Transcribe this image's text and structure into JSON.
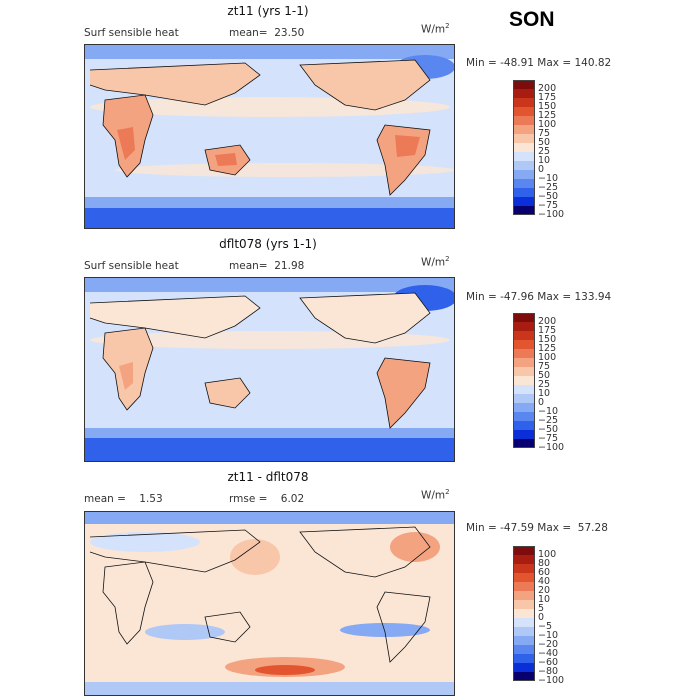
{
  "season": "SON",
  "colors": {
    "scale": [
      "#08006e",
      "#0a2fd8",
      "#2f61ea",
      "#5a86f0",
      "#86a9f3",
      "#b0c8f5",
      "#d4e3fb",
      "#fbe6d6",
      "#f8c6a9",
      "#f4a380",
      "#ec7a57",
      "#e3552e",
      "#c9361c",
      "#a91c12",
      "#7f0c0c"
    ]
  },
  "panels": [
    {
      "title": "zt11 (yrs 1-1)",
      "left_label": "Surf sensible heat",
      "right_label": "mean=  23.50",
      "units": "W/m",
      "units_exp": "2",
      "stats": "Min = -48.91 Max = 140.82",
      "colorbar_labels": [
        "200",
        "175",
        "150",
        "125",
        "100",
        "75",
        "50",
        "25",
        "10",
        "0",
        "−10",
        "−25",
        "−50",
        "−75",
        "−100"
      ]
    },
    {
      "title": "dflt078 (yrs 1-1)",
      "left_label": "Surf sensible heat",
      "right_label": "mean=  21.98",
      "units": "W/m",
      "units_exp": "2",
      "stats": "Min = -47.96 Max = 133.94",
      "colorbar_labels": [
        "200",
        "175",
        "150",
        "125",
        "100",
        "75",
        "50",
        "25",
        "10",
        "0",
        "−10",
        "−25",
        "−50",
        "−75",
        "−100"
      ]
    },
    {
      "title": "zt11 - dflt078",
      "left_label": "mean =    1.53",
      "right_label": "rmse =    6.02",
      "units": "W/m",
      "units_exp": "2",
      "stats": "Min = -47.59 Max =  57.28",
      "colorbar_labels": [
        "100",
        "80",
        "60",
        "40",
        "20",
        "10",
        "5",
        "0",
        "−5",
        "−10",
        "−20",
        "−40",
        "−60",
        "−80",
        "−100"
      ]
    }
  ]
}
